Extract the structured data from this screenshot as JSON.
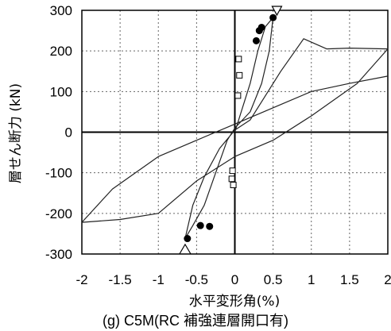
{
  "chart_data": {
    "type": "line",
    "title": "",
    "caption": "(g) C5M(RC 補強連層開口有)",
    "xlabel": "水平変形角(%)",
    "ylabel": "層せん断力 (kN)",
    "xlim": [
      -2,
      2
    ],
    "ylim": [
      -300,
      300
    ],
    "x_ticks": [
      "-2",
      "-1.5",
      "-1",
      "-0.5",
      "0",
      "0.5",
      "1",
      "1.5",
      "2"
    ],
    "y_ticks": [
      "300",
      "200",
      "100",
      "0",
      "-100",
      "-200",
      "-300"
    ],
    "grid": true,
    "series": [
      {
        "values": [
          [
            0,
            0
          ],
          [
            0.1,
            60
          ],
          [
            0.2,
            120
          ],
          [
            0.3,
            200
          ],
          [
            0.4,
            260
          ],
          [
            0.5,
            282
          ],
          [
            0.45,
            200
          ],
          [
            0.35,
            120
          ],
          [
            0.2,
            50
          ],
          [
            0,
            10
          ],
          [
            -0.1,
            -20
          ],
          [
            -0.25,
            -100
          ],
          [
            -0.4,
            -180
          ],
          [
            -0.55,
            -230
          ],
          [
            -0.65,
            -262
          ],
          [
            -0.55,
            -180
          ],
          [
            -0.4,
            -110
          ],
          [
            -0.2,
            -40
          ],
          [
            0,
            5
          ],
          [
            0.2,
            30
          ],
          [
            0.6,
            150
          ],
          [
            0.9,
            230
          ],
          [
            1.2,
            205
          ],
          [
            1.5,
            207
          ],
          [
            2.0,
            205
          ],
          [
            1.6,
            120
          ],
          [
            1.0,
            40
          ],
          [
            0.5,
            -20
          ],
          [
            0,
            -60
          ],
          [
            -0.5,
            -120
          ],
          [
            -1.0,
            -200
          ],
          [
            -1.5,
            -215
          ],
          [
            -2.0,
            -222
          ],
          [
            -1.6,
            -140
          ],
          [
            -1.0,
            -60
          ],
          [
            -0.5,
            -20
          ],
          [
            0,
            20
          ],
          [
            0.5,
            60
          ],
          [
            1.0,
            100
          ],
          [
            1.5,
            120
          ],
          [
            2.0,
            138
          ]
        ]
      }
    ],
    "markers": {
      "circles": [
        [
          0.28,
          225
        ],
        [
          0.32,
          250
        ],
        [
          0.35,
          258
        ],
        [
          0.5,
          282
        ],
        [
          -0.62,
          -262
        ],
        [
          -0.45,
          -230
        ],
        [
          -0.33,
          -232
        ]
      ],
      "squares": [
        [
          0.05,
          180
        ],
        [
          0.06,
          140
        ],
        [
          0.04,
          90
        ],
        [
          -0.03,
          -95
        ],
        [
          -0.04,
          -115
        ],
        [
          -0.02,
          -130
        ]
      ],
      "triangles_up": [
        [
          -0.65,
          -290
        ]
      ],
      "triangles_down": [
        [
          0.55,
          300
        ]
      ]
    }
  }
}
